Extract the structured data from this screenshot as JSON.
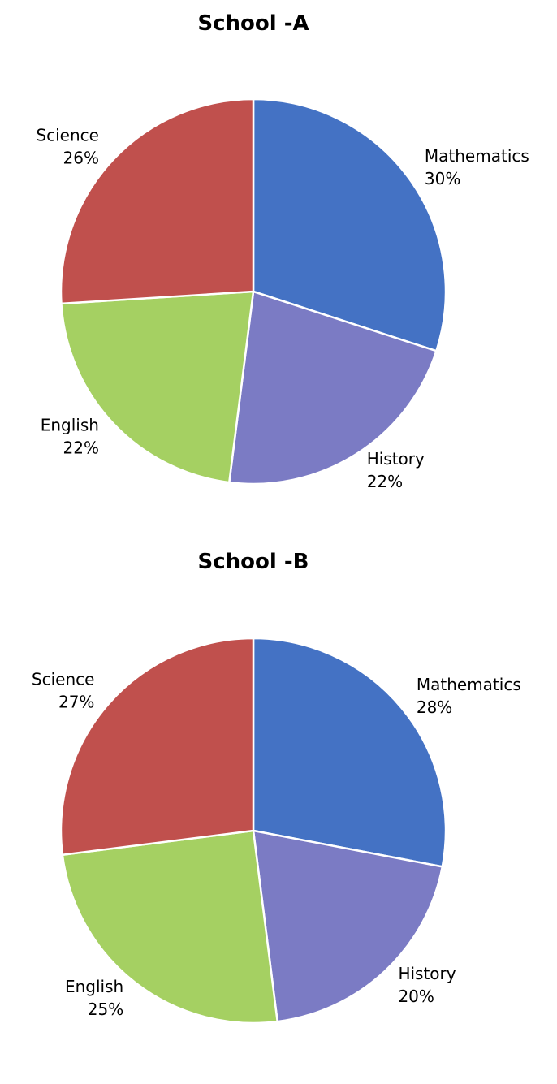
{
  "chart_data": [
    {
      "type": "pie",
      "title": "School -A",
      "categories": [
        "Mathematics",
        "History",
        "English",
        "Science"
      ],
      "values": [
        30,
        22,
        22,
        26
      ],
      "value_labels": [
        "30%",
        "22%",
        "22%",
        "26%"
      ],
      "colors": [
        "#4472c4",
        "#7b7bc4",
        "#a5d062",
        "#c0504d"
      ]
    },
    {
      "type": "pie",
      "title": "School -B",
      "categories": [
        "Mathematics",
        "History",
        "English",
        "Science"
      ],
      "values": [
        28,
        20,
        25,
        27
      ],
      "value_labels": [
        "28%",
        "20%",
        "25%",
        "27%"
      ],
      "colors": [
        "#4472c4",
        "#7b7bc4",
        "#a5d062",
        "#c0504d"
      ]
    }
  ]
}
